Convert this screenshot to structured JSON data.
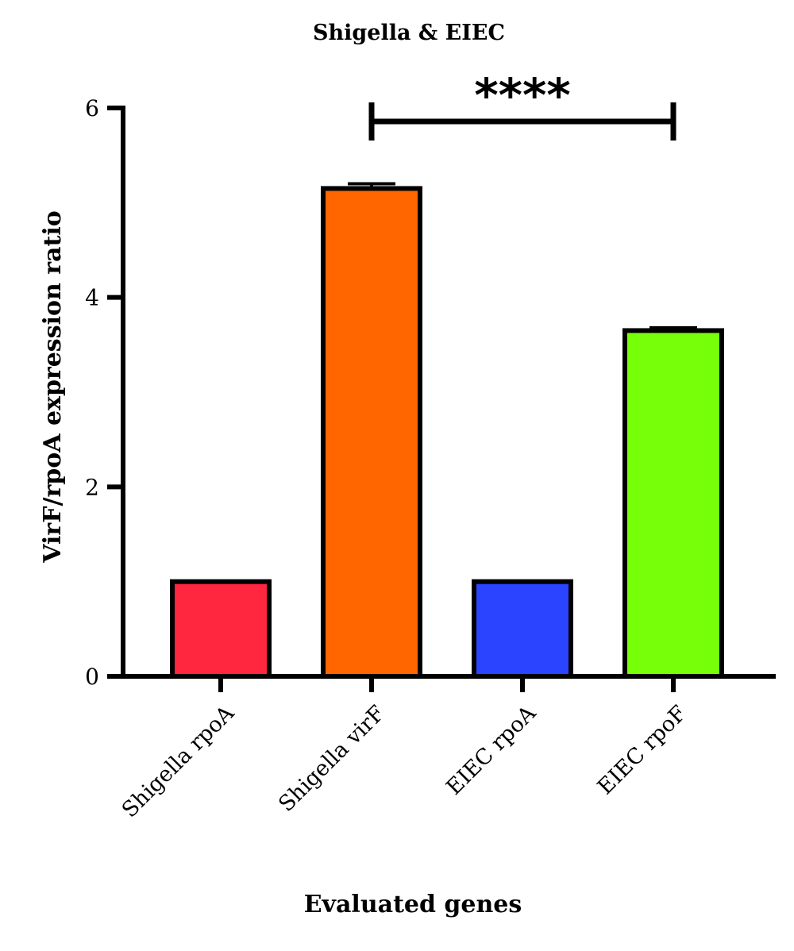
{
  "chart_data": {
    "type": "bar",
    "title": "Shigella & EIEC",
    "xlabel": "Evaluated genes",
    "ylabel": "VirF/rpoA expression ratio",
    "categories": [
      "Shigella rpoA",
      "Shigella virF",
      "EIEC rpoA",
      "EIEC rpoF"
    ],
    "values": [
      1.0,
      5.15,
      1.0,
      3.65
    ],
    "error": [
      0,
      0.05,
      0,
      0.03
    ],
    "colors": [
      "#ff2640",
      "#ff6600",
      "#2a44ff",
      "#77ff0a"
    ],
    "ylim": [
      0,
      6
    ],
    "yticks": [
      "0",
      "2",
      "4",
      "6"
    ],
    "grid": false,
    "significance": {
      "label": "****",
      "from_category": "Shigella virF",
      "to_category": "EIEC rpoF"
    }
  }
}
